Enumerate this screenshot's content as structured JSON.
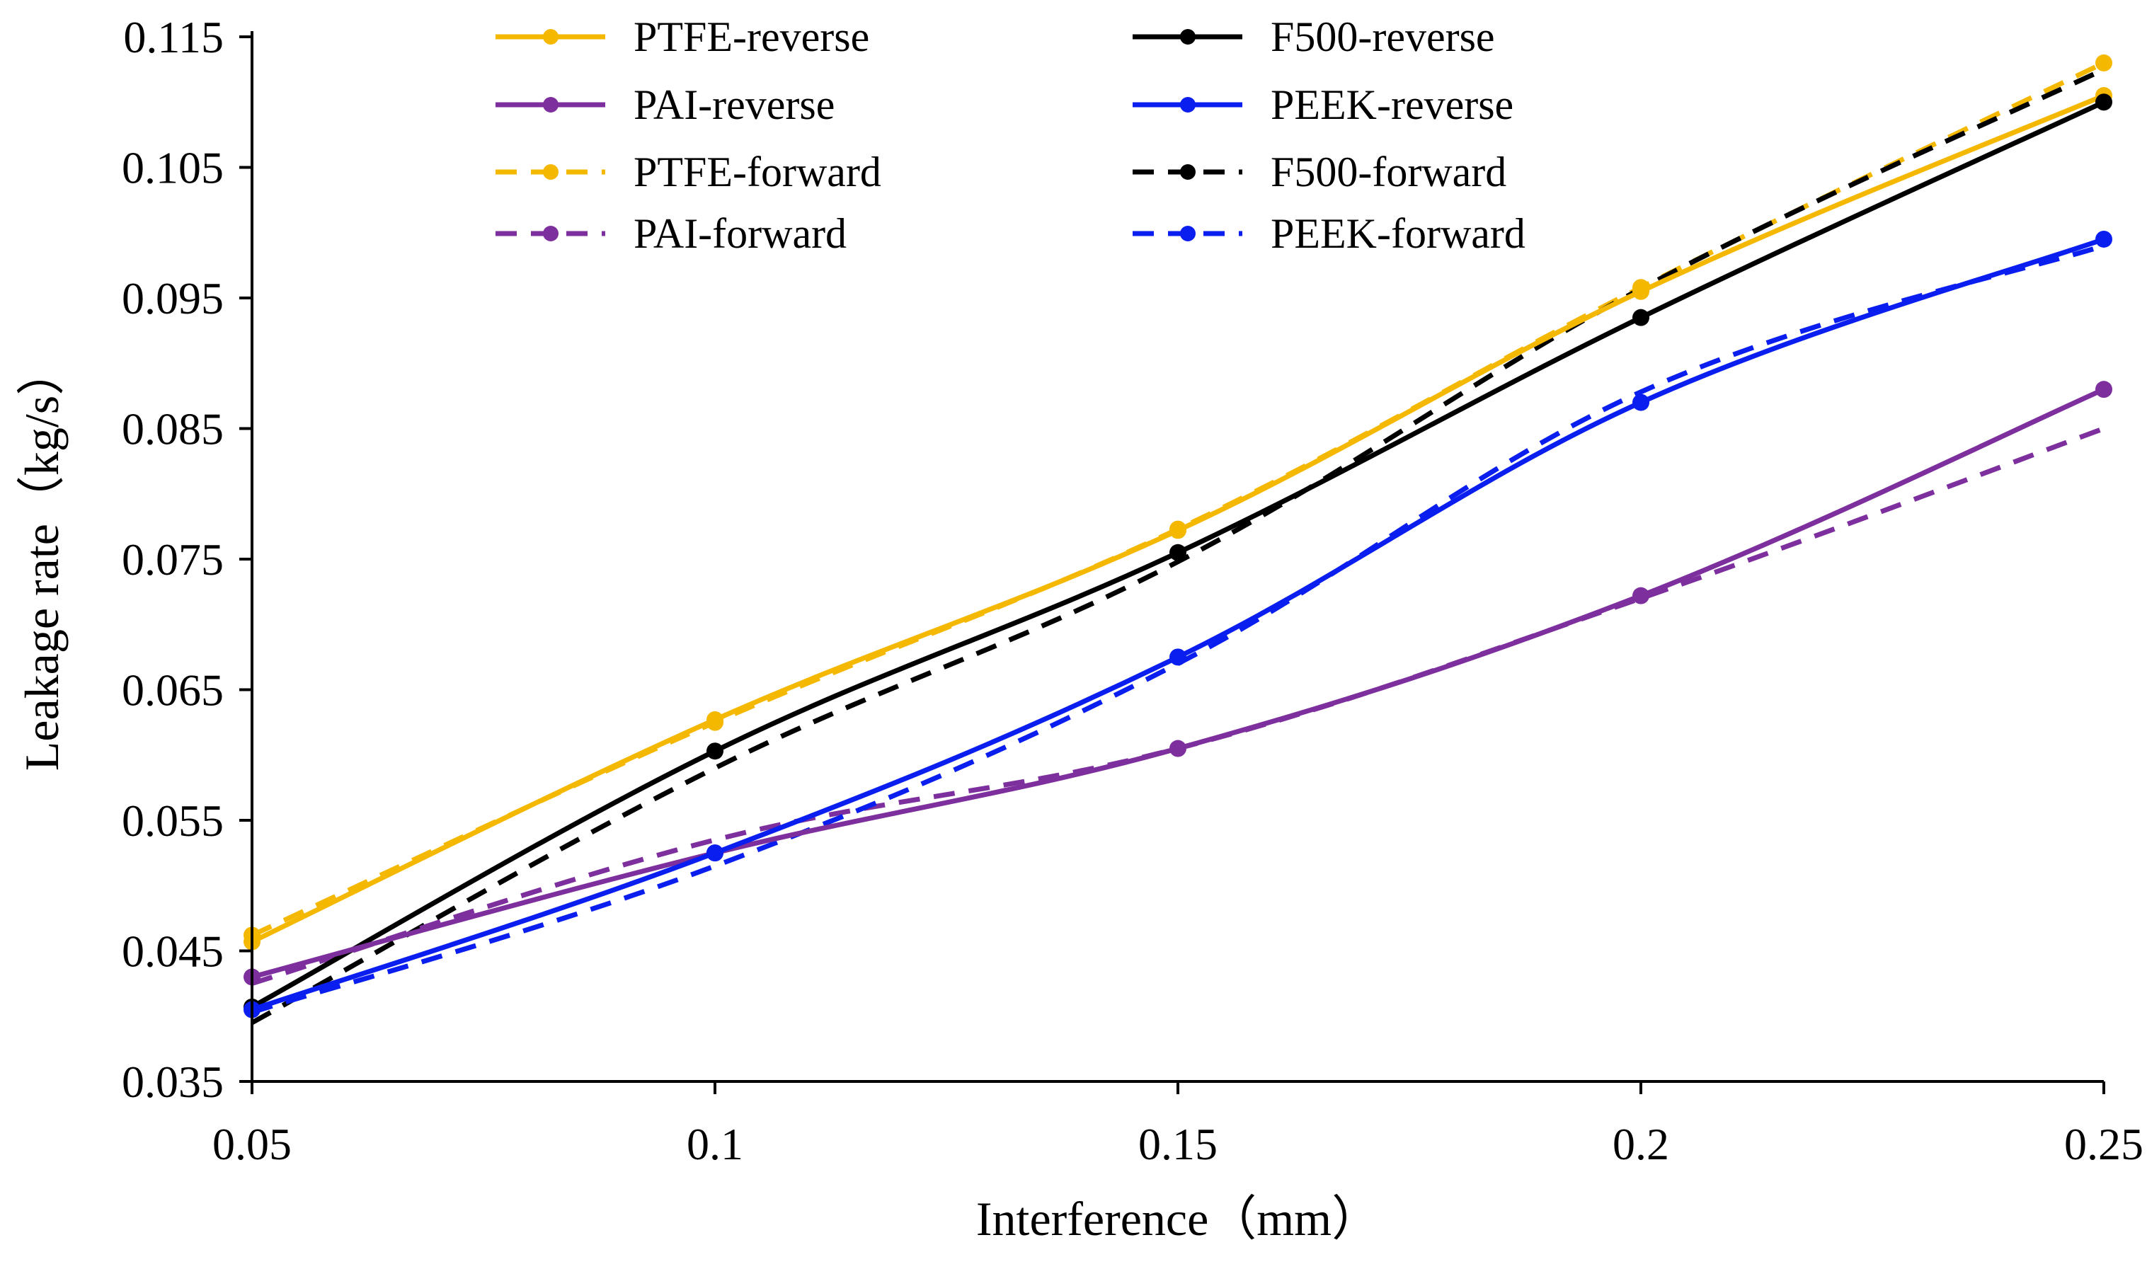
{
  "chart_data": {
    "type": "line",
    "title": "",
    "xlabel": "Interference（mm）",
    "ylabel": "Leakage rate（kg/s）",
    "x": [
      0.05,
      0.1,
      0.15,
      0.2,
      0.25
    ],
    "xlim": [
      0.05,
      0.25
    ],
    "ylim": [
      0.035,
      0.115
    ],
    "x_ticks": [
      0.05,
      0.1,
      0.15,
      0.2,
      0.25
    ],
    "x_tick_labels": [
      "0.05",
      "0.1",
      "0.15",
      "0.2",
      "0.25"
    ],
    "y_ticks": [
      0.035,
      0.045,
      0.055,
      0.065,
      0.075,
      0.085,
      0.095,
      0.105,
      0.115
    ],
    "y_tick_labels": [
      "0.035",
      "0.045",
      "0.055",
      "0.065",
      "0.075",
      "0.085",
      "0.095",
      "0.105",
      "0.115"
    ],
    "grid": false,
    "legend_position": "top",
    "series": [
      {
        "name": "PTFE-reverse",
        "color": "#F5B800",
        "style": "solid",
        "markers": true,
        "values": [
          0.0457,
          0.0627,
          0.0772,
          0.0955,
          0.1105
        ]
      },
      {
        "name": "F500-reverse",
        "color": "#000000",
        "style": "solid",
        "markers": true,
        "values": [
          0.0407,
          0.0603,
          0.0755,
          0.0935,
          0.11
        ]
      },
      {
        "name": "PAI-reverse",
        "color": "#7E2F9E",
        "style": "solid",
        "markers": true,
        "values": [
          0.043,
          0.0525,
          0.0605,
          0.0722,
          0.088
        ]
      },
      {
        "name": "PEEK-reverse",
        "color": "#0A1EF0",
        "style": "solid",
        "markers": true,
        "values": [
          0.0405,
          0.0525,
          0.0675,
          0.087,
          0.0995
        ]
      },
      {
        "name": "PTFE-forward",
        "color": "#F5B800",
        "style": "dashed",
        "markers": true,
        "values": [
          0.0462,
          0.0625,
          0.0773,
          0.0958,
          0.113
        ]
      },
      {
        "name": "F500-forward",
        "color": "#000000",
        "style": "dashed",
        "markers": false,
        "values": [
          0.0395,
          0.059,
          0.0748,
          0.0957,
          0.1125
        ]
      },
      {
        "name": "PAI-forward",
        "color": "#7E2F9E",
        "style": "dashed",
        "markers": false,
        "values": [
          0.0425,
          0.0535,
          0.0605,
          0.072,
          0.085
        ]
      },
      {
        "name": "PEEK-forward",
        "color": "#0A1EF0",
        "style": "dashed",
        "markers": false,
        "values": [
          0.0403,
          0.0515,
          0.067,
          0.0878,
          0.099
        ]
      }
    ]
  }
}
